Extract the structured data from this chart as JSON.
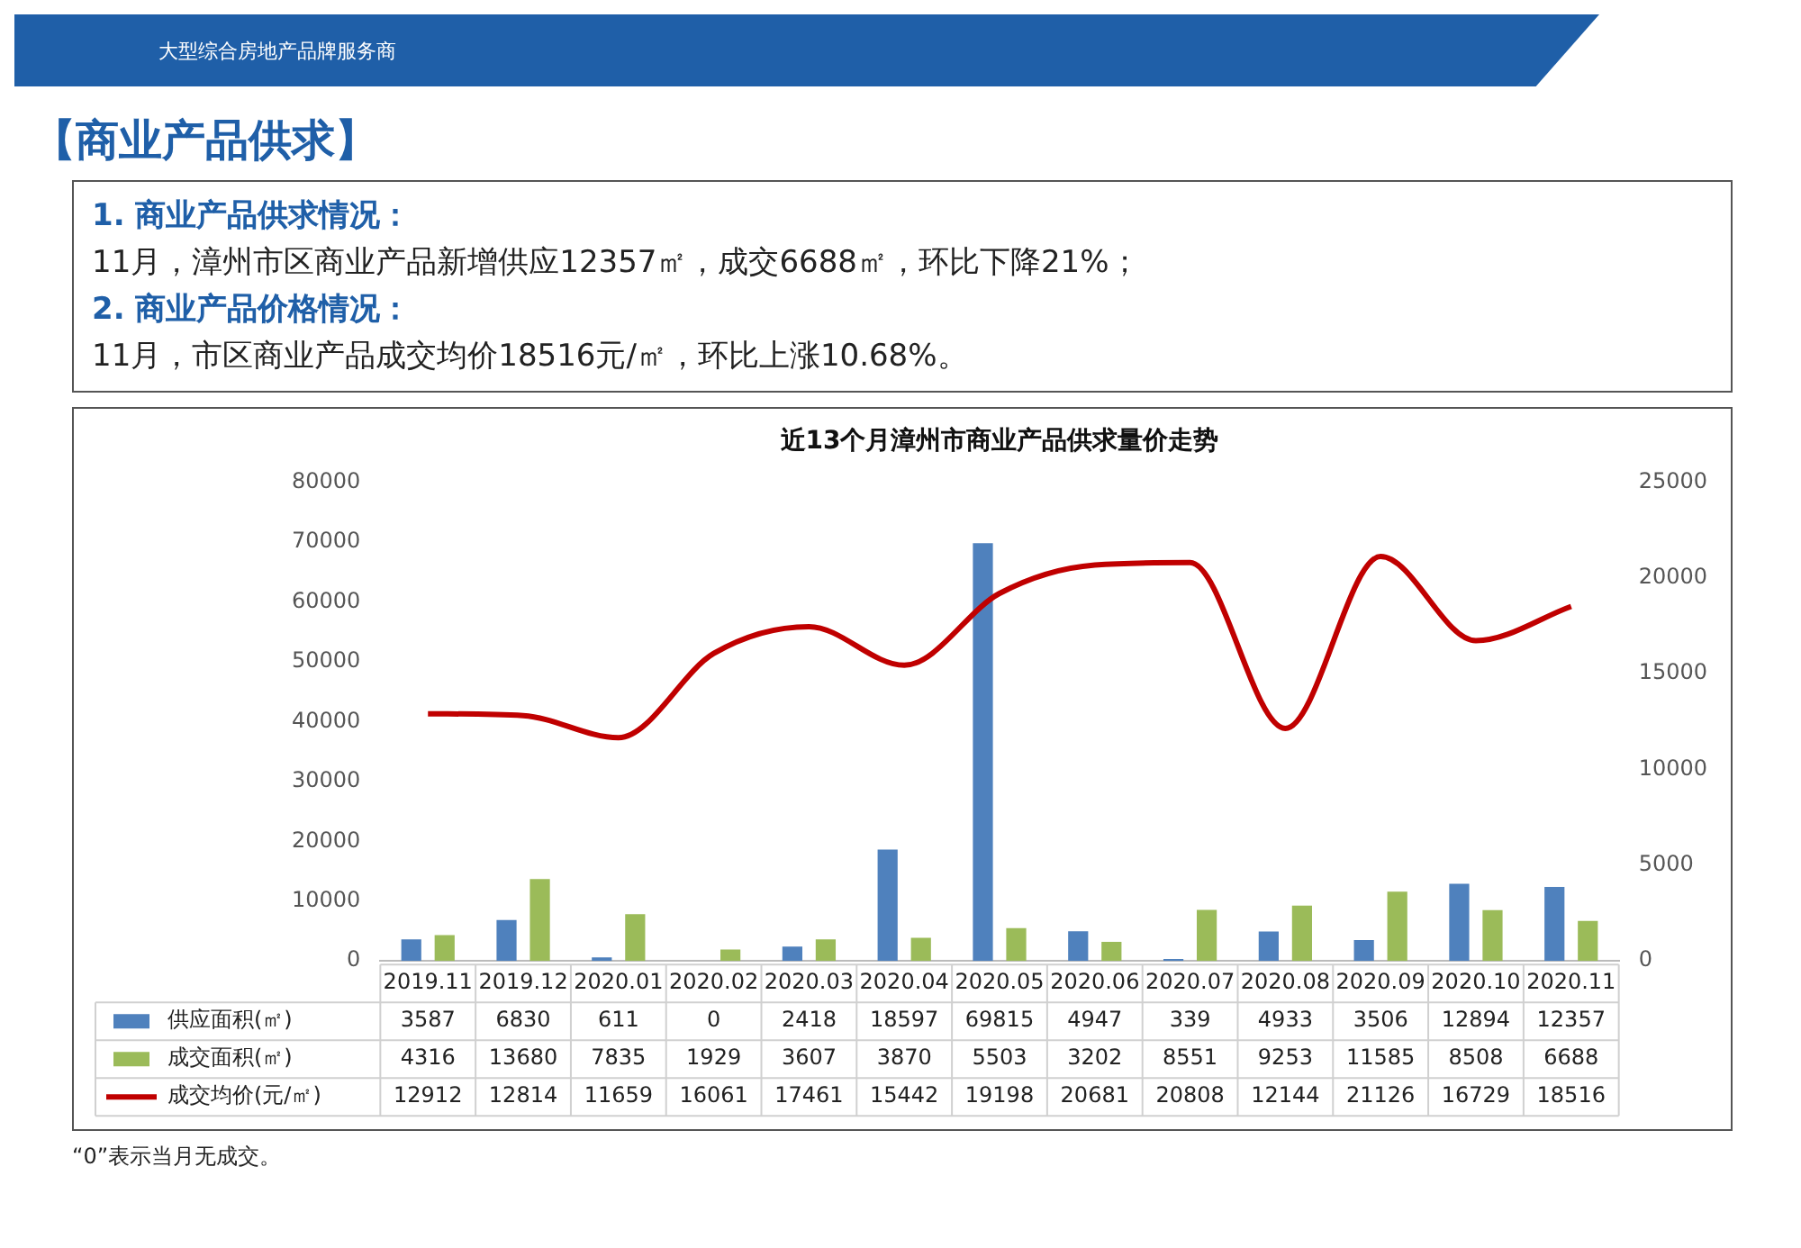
{
  "chart_data": {
    "type": "bar",
    "title": "近13个月漳州市商业产品供求量价走势",
    "annotations": [
      "大型综合房地产品牌服务商",
      "【商业产品供求】",
      "1. 商业产品供求情况：",
      "11月，漳州市区商业产品新增供应12357㎡，成交6688㎡，环比下降21%；",
      "2. 商业产品价格情况：",
      "11月，市区商业产品成交均价18516元/㎡，环比上涨10.68%。",
      "“0”表示当月无成交。"
    ],
    "categories": [
      "2019.11",
      "2019.12",
      "2020.01",
      "2020.02",
      "2020.03",
      "2020.04",
      "2020.05",
      "2020.06",
      "2020.07",
      "2020.08",
      "2020.09",
      "2020.10",
      "2020.11"
    ],
    "series": [
      {
        "name": "供应面积(㎡)",
        "color": "#4f81bd",
        "values": [
          3587,
          6830,
          611,
          0,
          2418,
          18597,
          69815,
          4947,
          339,
          4933,
          3506,
          12894,
          12357
        ]
      },
      {
        "name": "成交面积(㎡)",
        "color": "#9bbb59",
        "values": [
          4316,
          13680,
          7835,
          1929,
          3607,
          3870,
          5503,
          3202,
          8551,
          9253,
          11585,
          8508,
          6688
        ]
      },
      {
        "name": "成交均价(元/㎡)",
        "type": "line",
        "axis": "y2",
        "color": "#c00000",
        "values": [
          12912,
          12814,
          11659,
          16061,
          17461,
          15442,
          19198,
          20681,
          20808,
          12144,
          21126,
          16729,
          18516
        ]
      }
    ],
    "ylim": [
      0,
      80000
    ],
    "yticks": [
      0,
      10000,
      20000,
      30000,
      40000,
      50000,
      60000,
      70000,
      80000
    ],
    "y2lim": [
      0,
      25000
    ],
    "y2ticks": [
      0,
      5000,
      10000,
      15000,
      20000,
      25000
    ],
    "legend": "bottom",
    "data_labels": true,
    "marker": "none",
    "line_style": "solid"
  }
}
